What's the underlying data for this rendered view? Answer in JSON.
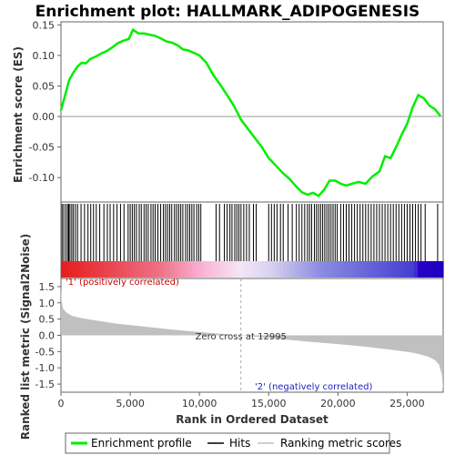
{
  "chart_data": {
    "type": "line",
    "title": "Enrichment plot: HALLMARK_ADIPOGENESIS",
    "xlabel": "Rank in Ordered Dataset",
    "top_panel": {
      "ylabel": "Enrichment score (ES)",
      "ylim": [
        -0.14,
        0.155
      ],
      "yticks": [
        "0.15",
        "0.10",
        "0.05",
        "0.00",
        "-0.05",
        "-0.10"
      ],
      "ytick_values": [
        0.15,
        0.1,
        0.05,
        0.0,
        -0.05,
        -0.1
      ],
      "series": [
        {
          "name": "Enrichment profile",
          "color": "#00ee00",
          "x": [
            0,
            300,
            600,
            900,
            1200,
            1500,
            1800,
            2100,
            2500,
            2900,
            3300,
            3700,
            4100,
            4500,
            4900,
            5200,
            5600,
            6000,
            6400,
            6800,
            7200,
            7600,
            8000,
            8400,
            8800,
            9200,
            9600,
            10000,
            10500,
            11000,
            11500,
            12000,
            12500,
            13000,
            13500,
            14000,
            14500,
            15000,
            15500,
            16000,
            16500,
            17000,
            17400,
            17800,
            18200,
            18600,
            19000,
            19400,
            19800,
            20200,
            20600,
            21000,
            21500,
            22000,
            22500,
            23000,
            23400,
            23800,
            24200,
            24600,
            25000,
            25400,
            25800,
            26200,
            26600,
            27000,
            27400
          ],
          "y": [
            0.01,
            0.035,
            0.06,
            0.072,
            0.082,
            0.088,
            0.087,
            0.094,
            0.098,
            0.103,
            0.107,
            0.113,
            0.12,
            0.124,
            0.127,
            0.142,
            0.136,
            0.136,
            0.134,
            0.132,
            0.128,
            0.123,
            0.121,
            0.117,
            0.11,
            0.108,
            0.104,
            0.1,
            0.088,
            0.068,
            0.052,
            0.035,
            0.017,
            -0.005,
            -0.02,
            -0.035,
            -0.05,
            -0.068,
            -0.08,
            -0.092,
            -0.102,
            -0.115,
            -0.124,
            -0.128,
            -0.125,
            -0.13,
            -0.12,
            -0.105,
            -0.105,
            -0.11,
            -0.113,
            -0.11,
            -0.107,
            -0.11,
            -0.098,
            -0.09,
            -0.065,
            -0.068,
            -0.05,
            -0.03,
            -0.012,
            0.015,
            0.035,
            0.03,
            0.018,
            0.012,
            0.001
          ]
        }
      ]
    },
    "middle_panel": {
      "hits_name": "Hits",
      "hits_positions": [
        80,
        200,
        350,
        480,
        560,
        650,
        780,
        900,
        1050,
        1200,
        1450,
        1700,
        1950,
        2150,
        2350,
        2550,
        2800,
        3100,
        3350,
        3550,
        3800,
        4050,
        4300,
        4550,
        4850,
        5000,
        5150,
        5300,
        5450,
        5650,
        5800,
        6000,
        6150,
        6300,
        6500,
        6650,
        6800,
        7000,
        7200,
        7400,
        7550,
        7700,
        7850,
        8000,
        8200,
        8350,
        8500,
        8650,
        8800,
        9000,
        9150,
        9300,
        9450,
        9600,
        9800,
        9950,
        10100,
        11200,
        11450,
        11800,
        12000,
        12200,
        12350,
        12550,
        12700,
        12850,
        13000,
        13200,
        13400,
        13600,
        13900,
        14100,
        15000,
        15200,
        15400,
        15600,
        15850,
        16050,
        16400,
        16700,
        17000,
        17200,
        17400,
        17600,
        17800,
        17950,
        18100,
        18300,
        18450,
        18600,
        18750,
        18900,
        19050,
        19200,
        19350,
        19500,
        19650,
        19800,
        19950,
        20200,
        20400,
        20600,
        20800,
        21000,
        21200,
        21400,
        21600,
        21800,
        22000,
        22200,
        22400,
        22600,
        22800,
        23000,
        23200,
        23400,
        23600,
        23800,
        24000,
        24200,
        24400,
        24600,
        24800,
        25000,
        25200,
        25400,
        25600,
        25800,
        26000,
        26300,
        27200
      ]
    },
    "bottom_panel": {
      "ylabel": "Ranked list metric (Signal2Noise)",
      "ylim": [
        -1.75,
        1.75
      ],
      "yticks": [
        "1.5",
        "1.0",
        "0.5",
        "0.0",
        "-0.5",
        "-1.0",
        "-1.5"
      ],
      "ytick_values": [
        1.5,
        1.0,
        0.5,
        0.0,
        -0.5,
        -1.0,
        -1.5
      ],
      "metric_name": "Ranking metric scores",
      "metric_x": [
        0,
        50,
        150,
        400,
        800,
        1500,
        2500,
        4000,
        6000,
        8000,
        10000,
        12000,
        12995,
        14000,
        16000,
        18000,
        20000,
        22000,
        24000,
        25500,
        26500,
        27000,
        27300,
        27500,
        27600
      ],
      "metric_y": [
        1.48,
        1.05,
        0.82,
        0.7,
        0.6,
        0.53,
        0.46,
        0.36,
        0.27,
        0.18,
        0.1,
        0.03,
        0.0,
        -0.04,
        -0.12,
        -0.2,
        -0.27,
        -0.35,
        -0.45,
        -0.54,
        -0.65,
        -0.76,
        -0.9,
        -1.2,
        -1.7
      ],
      "zero_cross_label": "Zero cross at 12995",
      "zero_cross_x": 12995,
      "pos_label": "'1' (positively correlated)",
      "neg_label": "'2' (negatively correlated)"
    },
    "xlim": [
      0,
      27600
    ],
    "xticks": [
      "0",
      "5,000",
      "10,000",
      "15,000",
      "20,000",
      "25,000"
    ],
    "xtick_values": [
      0,
      5000,
      10000,
      15000,
      20000,
      25000
    ],
    "legend": {
      "placement": "bottom",
      "items": [
        {
          "label": "Enrichment profile",
          "color": "#00ee00"
        },
        {
          "label": "Hits",
          "color": "#000000"
        },
        {
          "label": "Ranking metric scores",
          "color": "#c0c0c0"
        }
      ]
    },
    "colors": {
      "es_line": "#00ee00",
      "hits": "#000000",
      "metric_fill": "#c0c0c0",
      "pos_color": "#cc0000",
      "neg_color": "#2222bb"
    }
  }
}
